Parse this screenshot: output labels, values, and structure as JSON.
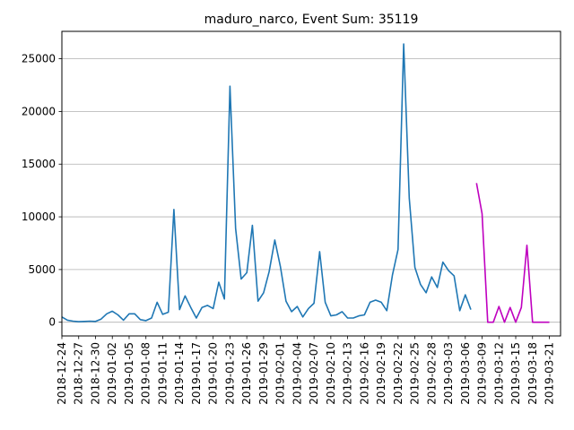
{
  "chart_data": {
    "type": "line",
    "title": "maduro_narco, Event Sum: 35119",
    "xlabel": "",
    "ylabel": "",
    "ylim": [
      -1300,
      27600
    ],
    "grid": "y-major",
    "x_start": "2018-12-24",
    "x_end": "2019-03-23",
    "x_ticks": [
      "2018-12-24",
      "2018-12-27",
      "2018-12-30",
      "2019-01-02",
      "2019-01-05",
      "2019-01-08",
      "2019-01-11",
      "2019-01-14",
      "2019-01-17",
      "2019-01-20",
      "2019-01-23",
      "2019-01-26",
      "2019-01-29",
      "2019-02-01",
      "2019-02-04",
      "2019-02-07",
      "2019-02-10",
      "2019-02-13",
      "2019-02-16",
      "2019-02-19",
      "2019-02-22",
      "2019-02-25",
      "2019-02-28",
      "2019-03-03",
      "2019-03-06",
      "2019-03-09",
      "2019-03-12",
      "2019-03-15",
      "2019-03-18",
      "2019-03-21"
    ],
    "y_ticks": [
      0,
      5000,
      10000,
      15000,
      20000,
      25000
    ],
    "series": [
      {
        "color": "#1f77b4",
        "points": [
          [
            "2018-12-24",
            500
          ],
          [
            "2018-12-25",
            200
          ],
          [
            "2018-12-26",
            100
          ],
          [
            "2018-12-27",
            50
          ],
          [
            "2018-12-28",
            80
          ],
          [
            "2018-12-29",
            100
          ],
          [
            "2018-12-30",
            80
          ],
          [
            "2018-12-31",
            300
          ],
          [
            "2019-01-01",
            800
          ],
          [
            "2019-01-02",
            1050
          ],
          [
            "2019-01-03",
            700
          ],
          [
            "2019-01-04",
            200
          ],
          [
            "2019-01-05",
            800
          ],
          [
            "2019-01-06",
            800
          ],
          [
            "2019-01-07",
            250
          ],
          [
            "2019-01-08",
            150
          ],
          [
            "2019-01-09",
            400
          ],
          [
            "2019-01-10",
            1900
          ],
          [
            "2019-01-11",
            750
          ],
          [
            "2019-01-12",
            950
          ],
          [
            "2019-01-13",
            10700
          ],
          [
            "2019-01-14",
            1200
          ],
          [
            "2019-01-15",
            2500
          ],
          [
            "2019-01-16",
            1400
          ],
          [
            "2019-01-17",
            400
          ],
          [
            "2019-01-18",
            1400
          ],
          [
            "2019-01-19",
            1600
          ],
          [
            "2019-01-20",
            1300
          ],
          [
            "2019-01-21",
            3800
          ],
          [
            "2019-01-22",
            2200
          ],
          [
            "2019-01-23",
            22400
          ],
          [
            "2019-01-24",
            8900
          ],
          [
            "2019-01-25",
            4100
          ],
          [
            "2019-01-26",
            4700
          ],
          [
            "2019-01-27",
            9200
          ],
          [
            "2019-01-28",
            2000
          ],
          [
            "2019-01-29",
            2800
          ],
          [
            "2019-01-30",
            4800
          ],
          [
            "2019-01-31",
            7800
          ],
          [
            "2019-02-01",
            5300
          ],
          [
            "2019-02-02",
            2000
          ],
          [
            "2019-02-03",
            1000
          ],
          [
            "2019-02-04",
            1500
          ],
          [
            "2019-02-05",
            500
          ],
          [
            "2019-02-06",
            1300
          ],
          [
            "2019-02-07",
            1800
          ],
          [
            "2019-02-08",
            6700
          ],
          [
            "2019-02-09",
            1900
          ],
          [
            "2019-02-10",
            600
          ],
          [
            "2019-02-11",
            700
          ],
          [
            "2019-02-12",
            1000
          ],
          [
            "2019-02-13",
            400
          ],
          [
            "2019-02-14",
            400
          ],
          [
            "2019-02-15",
            600
          ],
          [
            "2019-02-16",
            700
          ],
          [
            "2019-02-17",
            1900
          ],
          [
            "2019-02-18",
            2100
          ],
          [
            "2019-02-19",
            1900
          ],
          [
            "2019-02-20",
            1100
          ],
          [
            "2019-02-21",
            4500
          ],
          [
            "2019-02-22",
            6900
          ],
          [
            "2019-02-23",
            26400
          ],
          [
            "2019-02-24",
            11800
          ],
          [
            "2019-02-25",
            5200
          ],
          [
            "2019-02-26",
            3600
          ],
          [
            "2019-02-27",
            2800
          ],
          [
            "2019-02-28",
            4300
          ],
          [
            "2019-03-01",
            3300
          ],
          [
            "2019-03-02",
            5700
          ],
          [
            "2019-03-03",
            4900
          ],
          [
            "2019-03-04",
            4400
          ],
          [
            "2019-03-05",
            1100
          ],
          [
            "2019-03-06",
            2600
          ],
          [
            "2019-03-07",
            1200
          ]
        ]
      },
      {
        "color": "#bf00bf",
        "points": [
          [
            "2019-03-08",
            13200
          ],
          [
            "2019-03-09",
            10300
          ],
          [
            "2019-03-10",
            0
          ],
          [
            "2019-03-11",
            0
          ],
          [
            "2019-03-12",
            1500
          ],
          [
            "2019-03-13",
            0
          ],
          [
            "2019-03-14",
            1400
          ],
          [
            "2019-03-15",
            0
          ],
          [
            "2019-03-16",
            1400
          ],
          [
            "2019-03-17",
            7300
          ],
          [
            "2019-03-18",
            0
          ],
          [
            "2019-03-19",
            0
          ],
          [
            "2019-03-20",
            0
          ],
          [
            "2019-03-21",
            0
          ]
        ]
      }
    ]
  }
}
